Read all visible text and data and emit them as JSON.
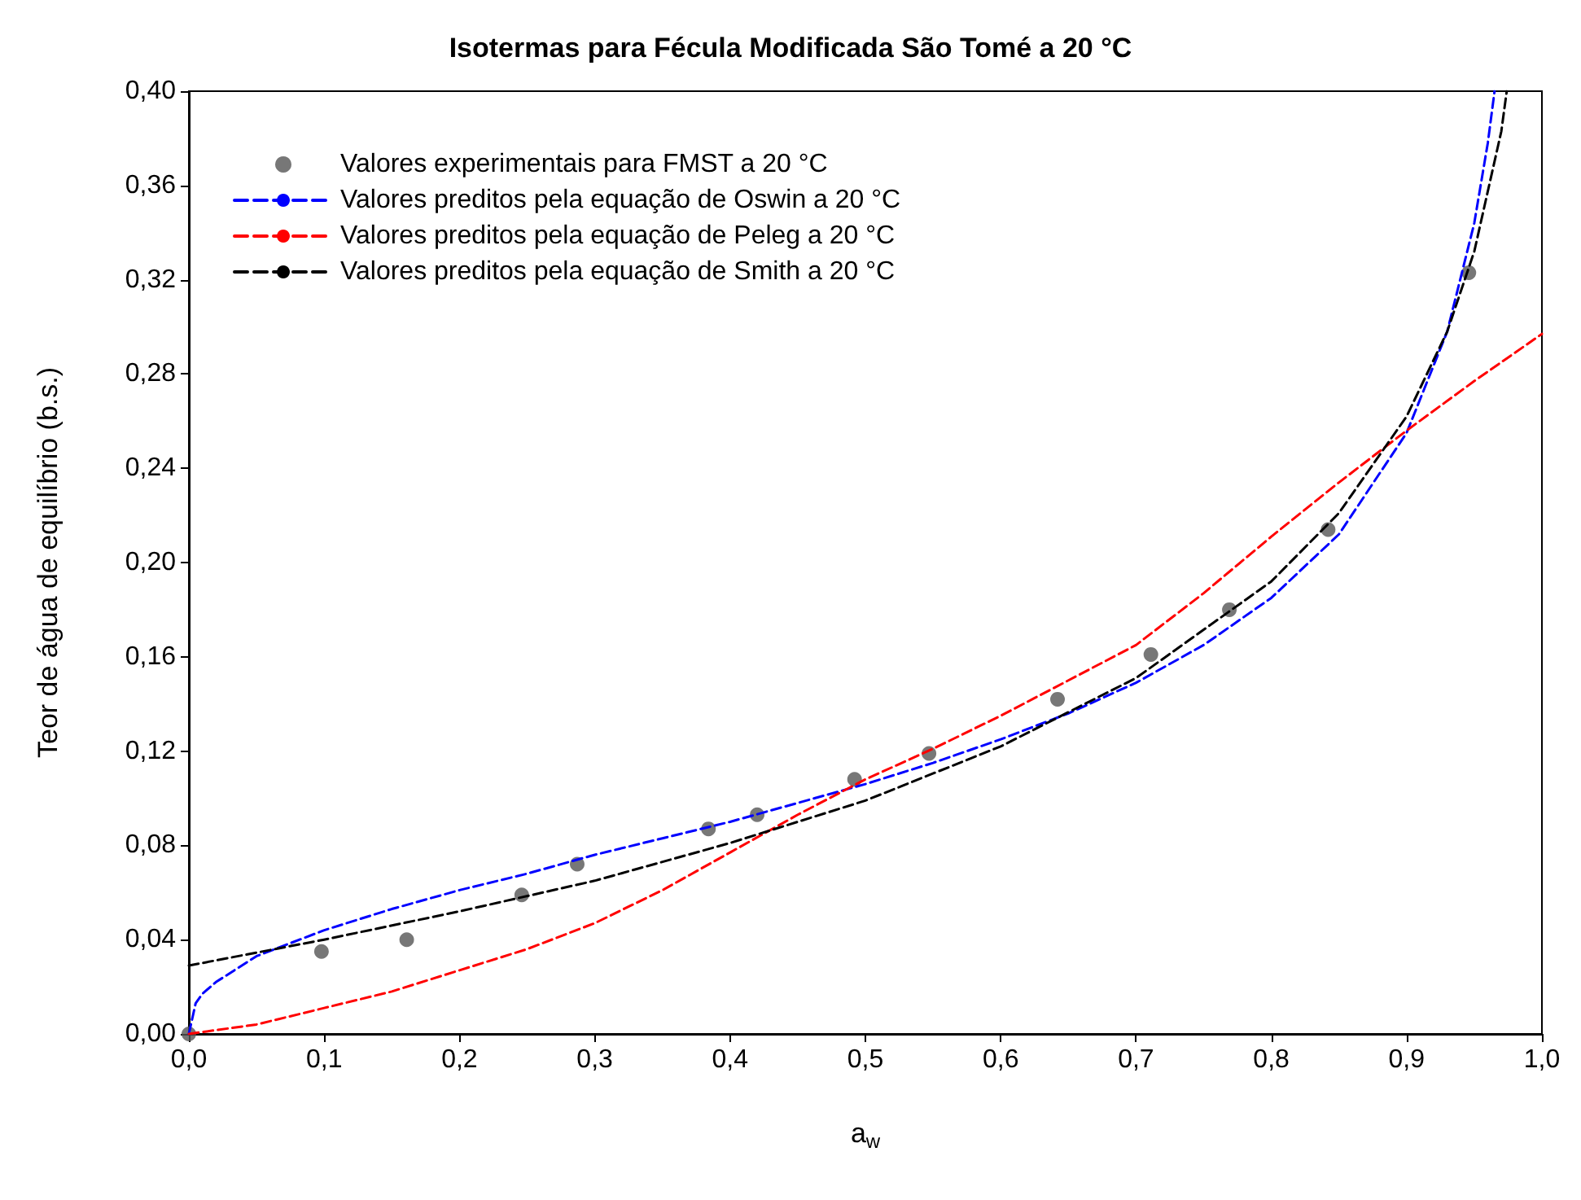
{
  "chart_data": {
    "type": "line",
    "title": "Isotermas para Fécula Modificada São Tomé a 20 °C",
    "xlabel": "a$_{w}$",
    "ylabel": "Teor de água de equilíbrio (b.s.)",
    "xlim": [
      0,
      1
    ],
    "ylim": [
      0,
      0.4
    ],
    "xticks": [
      {
        "value": 0,
        "label": "0,0"
      },
      {
        "value": 0.1,
        "label": "0,1"
      },
      {
        "value": 0.2,
        "label": "0,2"
      },
      {
        "value": 0.3,
        "label": "0,3"
      },
      {
        "value": 0.4,
        "label": "0,4"
      },
      {
        "value": 0.5,
        "label": "0,5"
      },
      {
        "value": 0.6,
        "label": "0,6"
      },
      {
        "value": 0.7,
        "label": "0,7"
      },
      {
        "value": 0.8,
        "label": "0,8"
      },
      {
        "value": 0.9,
        "label": "0,9"
      },
      {
        "value": 1,
        "label": "1,0"
      }
    ],
    "yticks": [
      {
        "value": 0,
        "label": "0,00"
      },
      {
        "value": 0.04,
        "label": "0,04"
      },
      {
        "value": 0.08,
        "label": "0,08"
      },
      {
        "value": 0.12,
        "label": "0,12"
      },
      {
        "value": 0.16,
        "label": "0,16"
      },
      {
        "value": 0.2,
        "label": "0,20"
      },
      {
        "value": 0.24,
        "label": "0,24"
      },
      {
        "value": 0.28,
        "label": "0,28"
      },
      {
        "value": 0.32,
        "label": "0,32"
      },
      {
        "value": 0.36,
        "label": "0,36"
      },
      {
        "value": 0.4,
        "label": "0,40"
      }
    ],
    "grid": false,
    "legend": "top left",
    "series": [
      {
        "name": "Valores experimentais para FMST a 20 °C",
        "type": "scatter",
        "marker": "circle",
        "color": "#555555",
        "x": [
          0.0,
          0.098,
          0.161,
          0.246,
          0.287,
          0.384,
          0.42,
          0.492,
          0.547,
          0.642,
          0.711,
          0.769,
          0.842,
          0.946
        ],
        "values": [
          0.0,
          0.035,
          0.04,
          0.059,
          0.072,
          0.087,
          0.093,
          0.108,
          0.119,
          0.142,
          0.161,
          0.18,
          0.214,
          0.323
        ]
      },
      {
        "name": "Valores preditos pela equação de Oswin a 20 °C",
        "marker": "none",
        "line_style": "dashed",
        "color": "#0000ff",
        "x": [
          0,
          0.005,
          0.01,
          0.02,
          0.05,
          0.1,
          0.15,
          0.2,
          0.25,
          0.3,
          0.35,
          0.4,
          0.45,
          0.5,
          0.55,
          0.6,
          0.65,
          0.7,
          0.75,
          0.8,
          0.85,
          0.9,
          0.93,
          0.95,
          0.96,
          0.965
        ],
        "values": [
          0,
          0.013,
          0.017,
          0.022,
          0.033,
          0.044,
          0.053,
          0.061,
          0.068,
          0.076,
          0.083,
          0.09,
          0.098,
          0.106,
          0.115,
          0.125,
          0.136,
          0.149,
          0.165,
          0.185,
          0.212,
          0.255,
          0.298,
          0.344,
          0.378,
          0.4
        ]
      },
      {
        "name": "Valores preditos pela equação de Peleg a 20 °C",
        "marker": "none",
        "line_style": "dashed",
        "color": "#ff0000",
        "x": [
          0,
          0.05,
          0.1,
          0.15,
          0.2,
          0.25,
          0.3,
          0.35,
          0.4,
          0.45,
          0.5,
          0.55,
          0.6,
          0.65,
          0.7,
          0.75,
          0.8,
          0.85,
          0.9,
          0.95,
          1.0
        ],
        "values": [
          0,
          0.004,
          0.011,
          0.018,
          0.027,
          0.036,
          0.047,
          0.061,
          0.077,
          0.093,
          0.108,
          0.121,
          0.135,
          0.15,
          0.165,
          0.187,
          0.211,
          0.234,
          0.256,
          0.277,
          0.297
        ]
      },
      {
        "name": "Valores preditos pela equação de Smith a 20 °C",
        "marker": "none",
        "line_style": "dashed",
        "color": "#000000",
        "x": [
          0,
          0.1,
          0.2,
          0.3,
          0.4,
          0.5,
          0.6,
          0.7,
          0.8,
          0.85,
          0.9,
          0.93,
          0.95,
          0.97,
          0.974
        ],
        "values": [
          0.029,
          0.04,
          0.052,
          0.065,
          0.081,
          0.099,
          0.122,
          0.151,
          0.192,
          0.221,
          0.262,
          0.298,
          0.332,
          0.383,
          0.4
        ]
      }
    ]
  }
}
